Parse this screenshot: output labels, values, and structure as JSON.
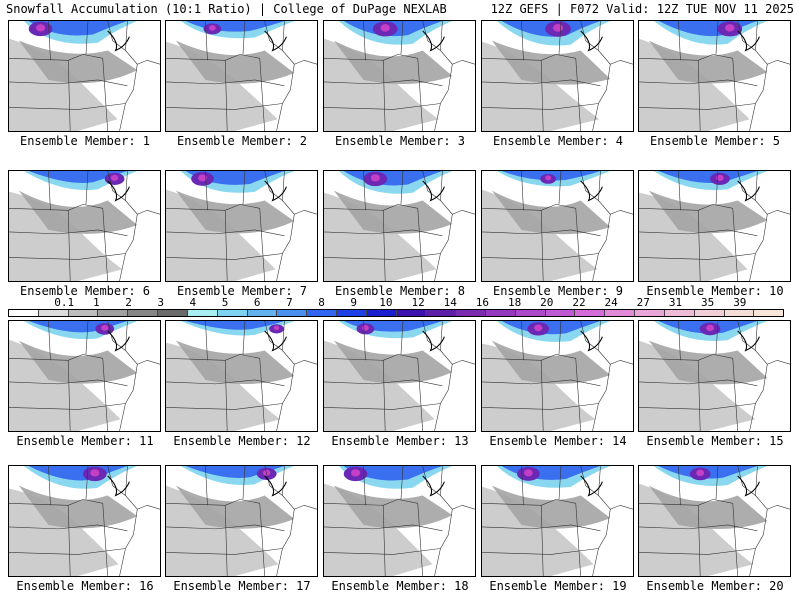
{
  "header": {
    "left_title": "Snowfall Accumulation (10:1 Ratio) | College of DuPage NEXLAB",
    "right_title": "12Z GEFS | F072 Valid: 12Z TUE NOV 11 2025"
  },
  "caption_prefix": "Ensemble Member: ",
  "members": [
    {
      "number": "1",
      "label": "Ensemble Member: 1",
      "intensity": 0.9
    },
    {
      "number": "2",
      "label": "Ensemble Member: 2",
      "intensity": 0.6
    },
    {
      "number": "3",
      "label": "Ensemble Member: 3",
      "intensity": 0.95
    },
    {
      "number": "4",
      "label": "Ensemble Member: 4",
      "intensity": 1.0
    },
    {
      "number": "5",
      "label": "Ensemble Member: 5",
      "intensity": 0.95
    },
    {
      "number": "6",
      "label": "Ensemble Member: 6",
      "intensity": 0.7
    },
    {
      "number": "7",
      "label": "Ensemble Member: 7",
      "intensity": 0.85
    },
    {
      "number": "8",
      "label": "Ensemble Member: 8",
      "intensity": 0.9
    },
    {
      "number": "9",
      "label": "Ensemble Member: 9",
      "intensity": 0.5
    },
    {
      "number": "10",
      "label": "Ensemble Member: 10",
      "intensity": 0.7
    },
    {
      "number": "11",
      "label": "Ensemble Member: 11",
      "intensity": 0.65
    },
    {
      "number": "12",
      "label": "Ensemble Member: 12",
      "intensity": 0.45
    },
    {
      "number": "13",
      "label": "Ensemble Member: 13",
      "intensity": 0.6
    },
    {
      "number": "14",
      "label": "Ensemble Member: 14",
      "intensity": 0.8
    },
    {
      "number": "15",
      "label": "Ensemble Member: 15",
      "intensity": 0.75
    },
    {
      "number": "16",
      "label": "Ensemble Member: 16",
      "intensity": 0.9
    },
    {
      "number": "17",
      "label": "Ensemble Member: 17",
      "intensity": 0.7
    },
    {
      "number": "18",
      "label": "Ensemble Member: 18",
      "intensity": 0.9
    },
    {
      "number": "19",
      "label": "Ensemble Member: 19",
      "intensity": 0.85
    },
    {
      "number": "20",
      "label": "Ensemble Member: 20",
      "intensity": 0.75
    }
  ],
  "colorbar": {
    "labels": [
      "0.1",
      "1",
      "2",
      "3",
      "4",
      "5",
      "6",
      "7",
      "8",
      "9",
      "10",
      "12",
      "14",
      "16",
      "18",
      "20",
      "22",
      "24",
      "27",
      "31",
      "35",
      "39"
    ],
    "colors": [
      "#ffffff",
      "#dcdcdc",
      "#bdbdbd",
      "#a0a0a0",
      "#858585",
      "#6a6a6a",
      "#a8eef0",
      "#7fd2f0",
      "#63b2ee",
      "#4b8ff0",
      "#3366f0",
      "#1f40e6",
      "#1a1fd0",
      "#3b12b0",
      "#5c1fa8",
      "#7a2cb0",
      "#9438bd",
      "#ac49c8",
      "#c05ad2",
      "#d36cd8",
      "#e08ad8",
      "#e9a6d8",
      "#efbcd8",
      "#f2cfd8",
      "#f5ddd8",
      "#f8e6d8"
    ]
  }
}
